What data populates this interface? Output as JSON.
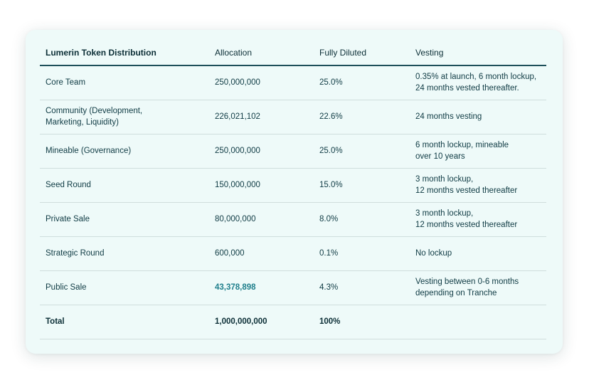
{
  "table": {
    "headers": {
      "title": "Lumerin Token Distribution",
      "allocation": "Allocation",
      "diluted": "Fully Diluted",
      "vesting": "Vesting"
    },
    "rows": [
      {
        "category": "Core Team",
        "allocation": "250,000,000",
        "diluted": "25.0%",
        "vesting": "0.35% at launch, 6 month lockup,\n24 months vested thereafter."
      },
      {
        "category": "Community (Development,\nMarketing, Liquidity)",
        "allocation": "226,021,102",
        "diluted": "22.6%",
        "vesting": "24 months vesting"
      },
      {
        "category": "Mineable (Governance)",
        "allocation": "250,000,000",
        "diluted": "25.0%",
        "vesting": "6 month lockup, mineable\nover 10 years"
      },
      {
        "category": "Seed Round",
        "allocation": "150,000,000",
        "diluted": "15.0%",
        "vesting": "3 month lockup,\n12 months vested thereafter"
      },
      {
        "category": "Private Sale",
        "allocation": "80,000,000",
        "diluted": "8.0%",
        "vesting": "3 month lockup,\n12 months vested thereafter"
      },
      {
        "category": "Strategic Round",
        "allocation": "600,000",
        "diluted": "0.1%",
        "vesting": "No lockup"
      },
      {
        "category": "Public Sale",
        "allocation": "43,378,898",
        "diluted": "4.3%",
        "vesting": "Vesting between 0-6 months\ndepending on Tranche"
      }
    ],
    "total": {
      "category": "Total",
      "allocation": "1,000,000,000",
      "diluted": "100%",
      "vesting": ""
    }
  },
  "colors": {
    "card_background": "#eefaf9",
    "text": "#0f3b44",
    "accent": "#1f7f8c",
    "header_rule": "#1d4f5a",
    "row_divider": "#cfdedd"
  }
}
